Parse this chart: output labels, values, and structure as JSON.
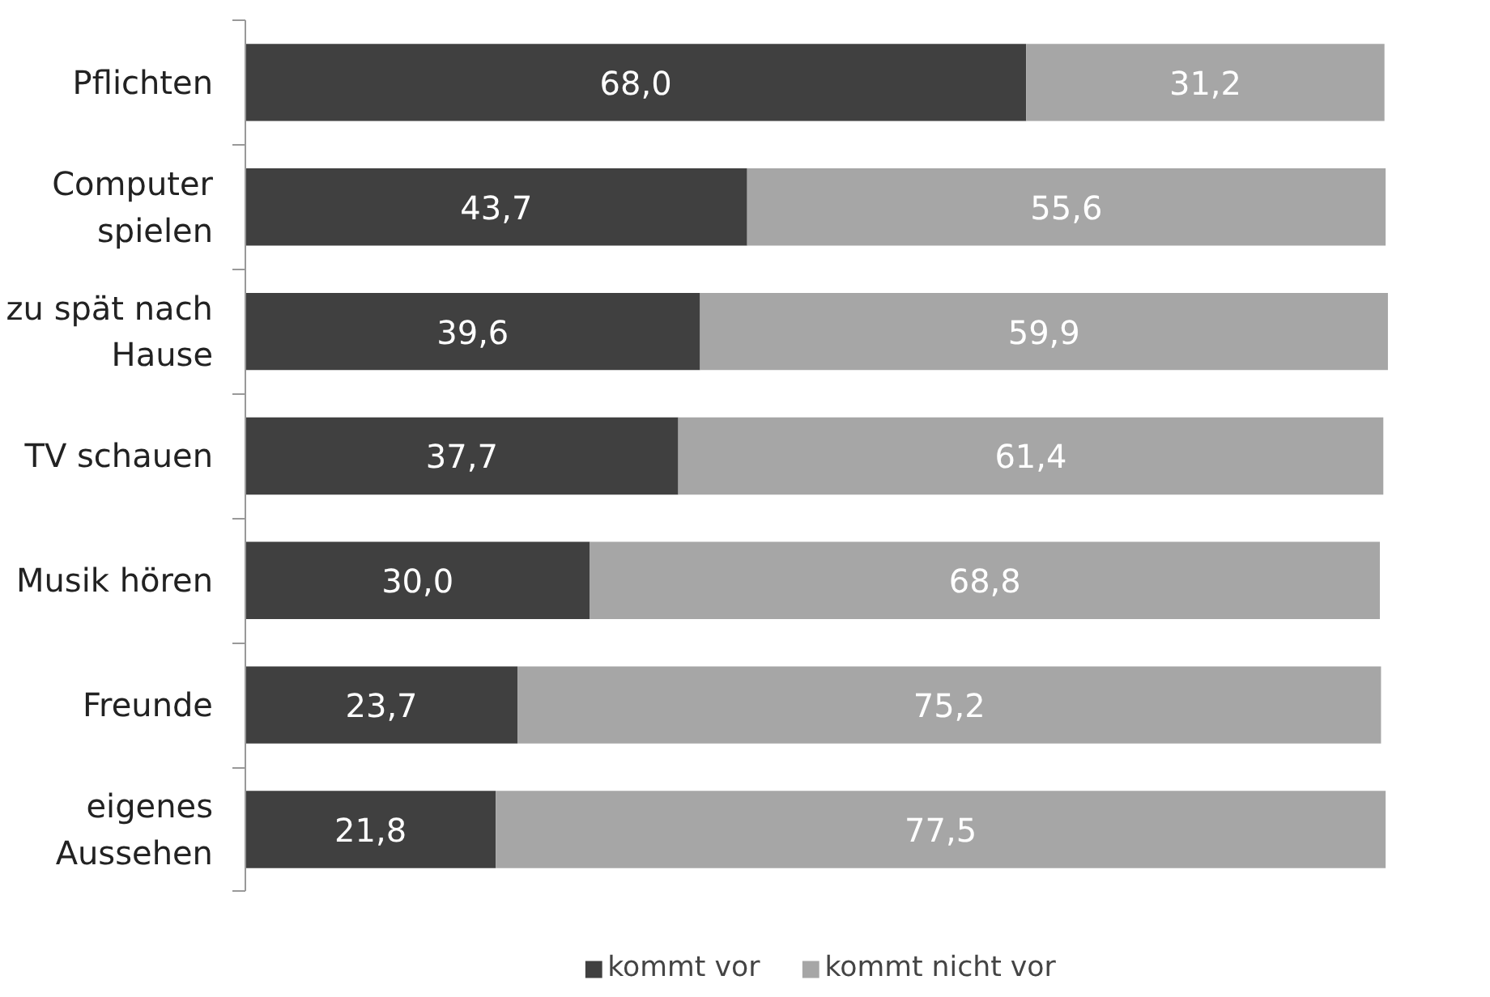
{
  "chart_data": {
    "type": "bar",
    "orientation": "horizontal",
    "stacked": true,
    "legend": "bottom",
    "grid": false,
    "categories": [
      "Pflichten",
      "Computer spielen",
      "zu spät nach Hause",
      "TV schauen",
      "Musik hören",
      "Freunde",
      "eigenes Aussehen"
    ],
    "series": [
      {
        "name": "kommt vor",
        "color": "#404040",
        "values": [
          68.0,
          43.7,
          39.6,
          37.7,
          30.0,
          23.7,
          21.8
        ],
        "value_labels": [
          "68,0",
          "43,7",
          "39,6",
          "37,7",
          "30,0",
          "23,7",
          "21,8"
        ]
      },
      {
        "name": "kommt nicht vor",
        "color": "#a6a6a6",
        "values": [
          31.2,
          55.6,
          59.9,
          61.4,
          68.8,
          75.2,
          77.5
        ],
        "value_labels": [
          "31,2",
          "55,6",
          "59,9",
          "61,4",
          "68,8",
          "75,2",
          "77,5"
        ]
      }
    ]
  }
}
